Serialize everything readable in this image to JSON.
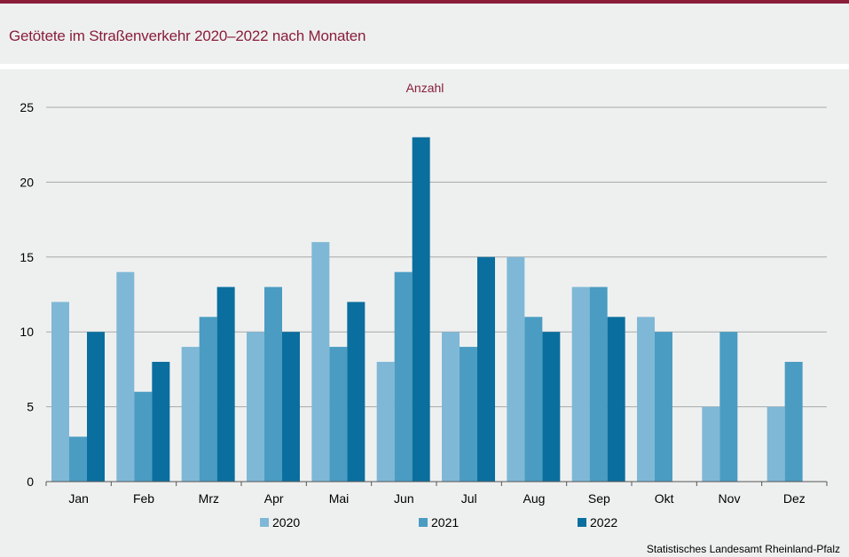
{
  "title": "Getötete im Straßenverkehr 2020–2022 nach Monaten",
  "source": "Statistisches Landesamt  Rheinland-Pfalz",
  "colors": {
    "accent": "#8a1e3a",
    "panel": "#eef0f0"
  },
  "chart_data": {
    "type": "bar",
    "unit_label": "Anzahl",
    "categories": [
      "Jan",
      "Feb",
      "Mrz",
      "Apr",
      "Mai",
      "Jun",
      "Jul",
      "Aug",
      "Sep",
      "Okt",
      "Nov",
      "Dez"
    ],
    "series": [
      {
        "name": "2020",
        "color": "#7fb8d6",
        "values": [
          12,
          14,
          9,
          10,
          16,
          8,
          10,
          15,
          13,
          11,
          5,
          5
        ]
      },
      {
        "name": "2021",
        "color": "#4a9cc2",
        "values": [
          3,
          6,
          11,
          13,
          9,
          14,
          9,
          11,
          13,
          10,
          10,
          8
        ]
      },
      {
        "name": "2022",
        "color": "#0a6f9e",
        "values": [
          10,
          8,
          13,
          10,
          12,
          23,
          15,
          10,
          11,
          null,
          null,
          null
        ]
      }
    ],
    "ylim": [
      0,
      25
    ],
    "yticks": [
      0,
      5,
      10,
      15,
      20,
      25
    ],
    "grid": true,
    "legend": "bottom"
  }
}
